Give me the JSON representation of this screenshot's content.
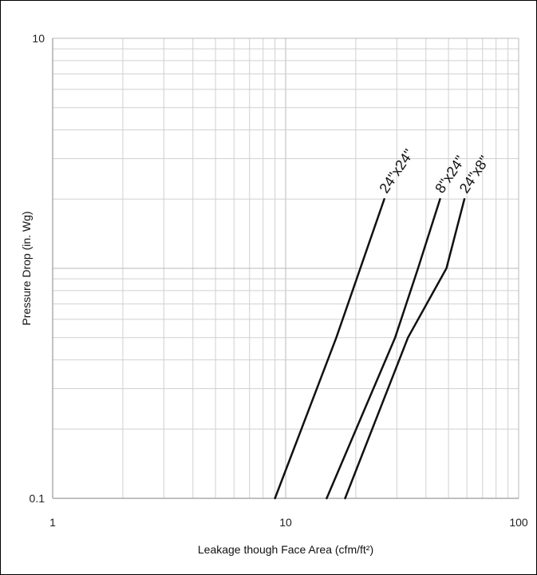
{
  "chart_data": {
    "type": "line",
    "title": "",
    "xlabel": "Leakage though Face Area (cfm/ft²)",
    "ylabel": "Pressure Drop (in. Wg)",
    "x_scale": "log",
    "y_scale": "log",
    "xlim": [
      1,
      100
    ],
    "ylim": [
      0.1,
      10
    ],
    "x_ticks": [
      "1",
      "10",
      "100"
    ],
    "y_ticks": [
      "0.1",
      "10"
    ],
    "grid": true,
    "legend": "none",
    "series": [
      {
        "name": "24\"x24\"",
        "x": [
          9,
          16.5,
          26.5
        ],
        "y": [
          0.1,
          0.5,
          2
        ]
      },
      {
        "name": "8\"x24\"",
        "x": [
          15,
          29.5,
          37,
          46
        ],
        "y": [
          0.1,
          0.5,
          1,
          2
        ]
      },
      {
        "name": "24\"x8\"",
        "x": [
          18,
          33.5,
          49,
          58.5
        ],
        "y": [
          0.1,
          0.5,
          1,
          2
        ]
      }
    ],
    "colors": {
      "line": "#111111",
      "grid": "#d0d0d0",
      "grid_major": "#b8b8b8"
    }
  }
}
